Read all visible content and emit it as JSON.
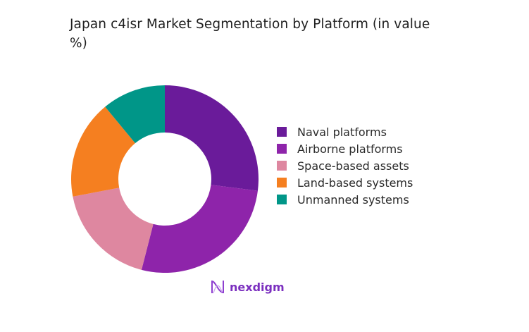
{
  "title": "Japan c4isr Market Segmentation by Platform (in value %)",
  "title_line1": "Japan c4isr Market Segmentation by Platform (in value",
  "title_line2": "%)",
  "logo": {
    "text": "nexdigm",
    "icon": "nexdigm-wave-icon"
  },
  "chart_data": {
    "type": "pie",
    "subtype": "donut",
    "title": "Japan c4isr Market Segmentation by Platform (in value %)",
    "categories": [
      "Naval platforms",
      "Airborne platforms",
      "Space-based assets",
      "Land-based systems",
      "Unmanned systems"
    ],
    "values": [
      27,
      27,
      18,
      17,
      11
    ],
    "colors": [
      "#6a1b9a",
      "#8e24aa",
      "#de87a0",
      "#f57f20",
      "#009688"
    ],
    "start_angle_deg": 0,
    "direction": "clockwise",
    "legend_position": "right"
  },
  "legend": [
    {
      "label": "Naval platforms",
      "color": "#6a1b9a"
    },
    {
      "label": "Airborne platforms",
      "color": "#8e24aa"
    },
    {
      "label": "Space-based assets",
      "color": "#de87a0"
    },
    {
      "label": "Land-based systems",
      "color": "#f57f20"
    },
    {
      "label": "Unmanned systems",
      "color": "#009688"
    }
  ]
}
